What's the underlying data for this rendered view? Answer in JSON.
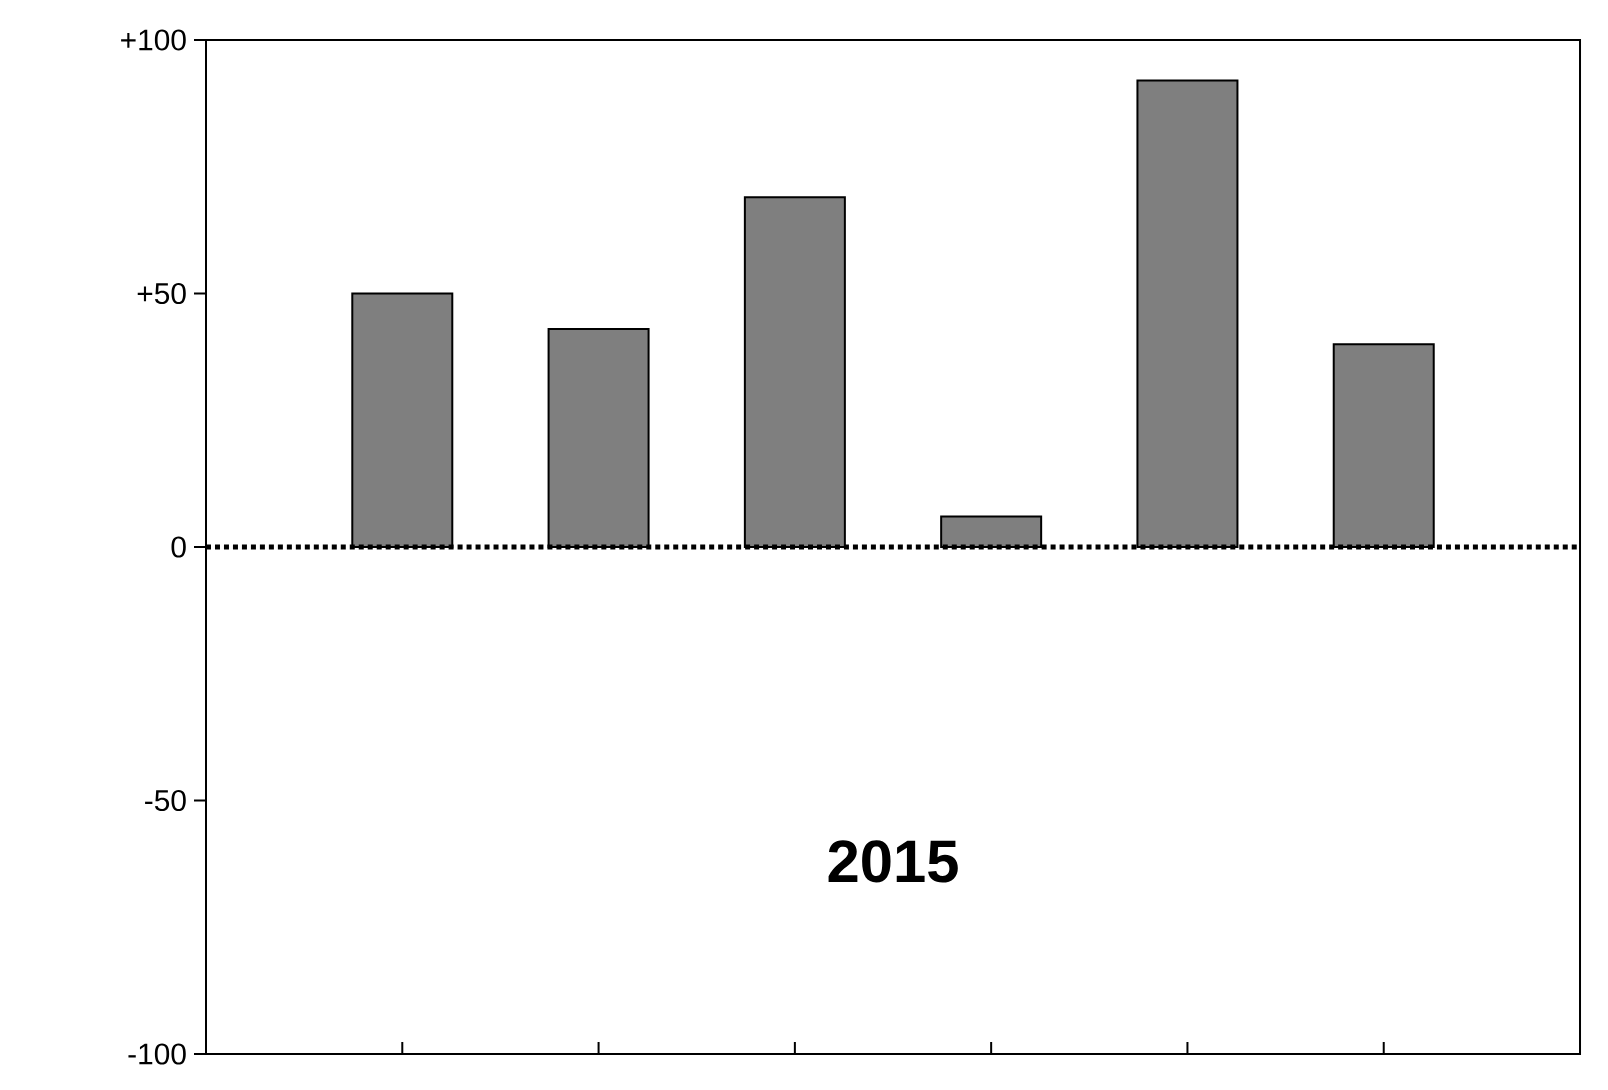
{
  "chart_data": {
    "type": "bar",
    "categories": [
      null,
      null,
      null,
      null,
      null,
      null
    ],
    "values": [
      50,
      43,
      69,
      6,
      92,
      40
    ],
    "color": "#7f7f7f",
    "ylim": [
      -100,
      100
    ],
    "yticks": [
      {
        "value": 100,
        "label": "+100"
      },
      {
        "value": 50,
        "label": "+50"
      },
      0,
      -50,
      -100
    ],
    "tick_labels": "y",
    "grid": false,
    "ref_lines": [
      {
        "axis": "y",
        "value": 0,
        "line_style": "dotted",
        "color": "#000000"
      }
    ],
    "annotations": [
      "2015"
    ]
  }
}
